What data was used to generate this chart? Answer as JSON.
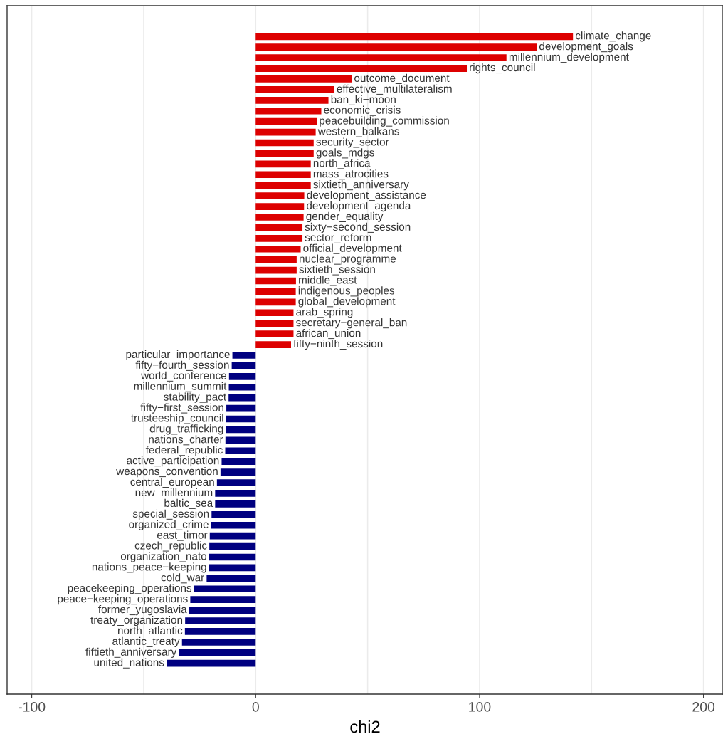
{
  "chart_data": {
    "type": "bar",
    "orientation": "horizontal",
    "xlabel": "chi2",
    "xlim": [
      -111,
      208.7
    ],
    "xticks": [
      -100,
      {
        "value": -50,
        "label": null
      },
      0,
      {
        "value": 50,
        "label": null
      },
      100,
      {
        "value": 150,
        "label": null
      },
      200
    ],
    "grid": "x",
    "tick_labels": "x",
    "categories": [
      "climate_change",
      "development_goals",
      "millennium_development",
      "rights_council",
      "outcome_document",
      "effective_multilateralism",
      "ban_ki−moon",
      "economic_crisis",
      "peacebuilding_commission",
      "western_balkans",
      "security_sector",
      "goals_mdgs",
      "north_africa",
      "mass_atrocities",
      "sixtieth_anniversary",
      "development_assistance",
      "development_agenda",
      "gender_equality",
      "sixty−second_session",
      "sector_reform",
      "official_development",
      "nuclear_programme",
      "sixtieth_session",
      "middle_east",
      "indigenous_peoples",
      "global_development",
      "arab_spring",
      "secretary−general_ban",
      "african_union",
      "fifty−ninth_session",
      "particular_importance",
      "fifty−fourth_session",
      "world_conference",
      "millennium_summit",
      "stability_pact",
      "fifty−first_session",
      "trusteeship_council",
      "drug_trafficking",
      "nations_charter",
      "federal_republic",
      "active_participation",
      "weapons_convention",
      "central_european",
      "new_millennium",
      "baltic_sea",
      "special_session",
      "organized_crime",
      "east_timor",
      "czech_republic",
      "organization_nato",
      "nations_peace−keeping",
      "cold_war",
      "peacekeeping_operations",
      "peace−keeping_operations",
      "former_yugoslavia",
      "treaty_organization",
      "north_atlantic",
      "atlantic_treaty",
      "fiftieth_anniversary",
      "united_nations"
    ],
    "values": [
      141.7,
      125.5,
      112.0,
      94.3,
      42.9,
      35.1,
      32.5,
      29.3,
      27.3,
      26.8,
      25.9,
      25.9,
      24.6,
      24.6,
      24.6,
      21.7,
      21.6,
      21.4,
      20.9,
      20.9,
      20.1,
      18.3,
      18.3,
      18.0,
      17.9,
      17.9,
      16.9,
      16.9,
      16.9,
      15.8,
      -10.4,
      -10.7,
      -11.9,
      -12.0,
      -12.1,
      -13.1,
      -13.2,
      -13.3,
      -13.5,
      -13.6,
      -15.2,
      -15.7,
      -17.3,
      -18.1,
      -18.1,
      -19.7,
      -19.9,
      -20.5,
      -20.7,
      -20.8,
      -20.8,
      -21.9,
      -27.5,
      -29.2,
      -29.7,
      -31.5,
      -31.6,
      -32.9,
      -34.3,
      -39.8
    ],
    "colors": [
      "#dd0000",
      "#dd0000",
      "#dd0000",
      "#dd0000",
      "#dd0000",
      "#dd0000",
      "#dd0000",
      "#dd0000",
      "#dd0000",
      "#dd0000",
      "#dd0000",
      "#dd0000",
      "#dd0000",
      "#dd0000",
      "#dd0000",
      "#dd0000",
      "#dd0000",
      "#dd0000",
      "#dd0000",
      "#dd0000",
      "#dd0000",
      "#dd0000",
      "#dd0000",
      "#dd0000",
      "#dd0000",
      "#dd0000",
      "#dd0000",
      "#dd0000",
      "#dd0000",
      "#dd0000",
      "#000080",
      "#000080",
      "#000080",
      "#000080",
      "#000080",
      "#000080",
      "#000080",
      "#000080",
      "#000080",
      "#000080",
      "#000080",
      "#000080",
      "#000080",
      "#000080",
      "#000080",
      "#000080",
      "#000080",
      "#000080",
      "#000080",
      "#000080",
      "#000080",
      "#000080",
      "#000080",
      "#000080",
      "#000080",
      "#000080",
      "#000080",
      "#000080",
      "#000080",
      "#000080"
    ]
  }
}
